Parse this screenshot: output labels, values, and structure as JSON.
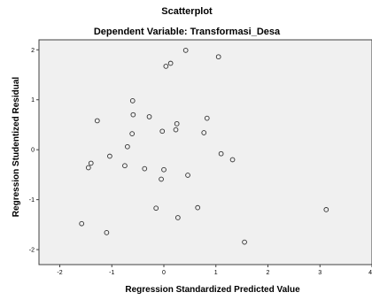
{
  "chart_data": {
    "type": "scatter",
    "title": "Scatterplot",
    "subtitle": "Dependent Variable: Transformasi_Desa",
    "xlabel": "Regression Standardized Predicted Value",
    "ylabel": "Regression Studentized Residual",
    "xlim": [
      -2.4,
      4.0
    ],
    "ylim": [
      -2.3,
      2.2
    ],
    "xticks": [
      "-2",
      "-1",
      "0",
      "1",
      "2",
      "3",
      "4"
    ],
    "yticks": [
      "-2",
      "-1",
      "0",
      "1",
      "2"
    ],
    "grid": false,
    "colors": {
      "plot_bg": "#f0f0f0",
      "marker_edge": "#303030",
      "frame": "#404040"
    },
    "points": [
      {
        "x": -1.58,
        "y": -1.48
      },
      {
        "x": -1.45,
        "y": -0.36
      },
      {
        "x": -1.4,
        "y": -0.27
      },
      {
        "x": -1.28,
        "y": 0.58
      },
      {
        "x": -1.1,
        "y": -1.66
      },
      {
        "x": -1.04,
        "y": -0.13
      },
      {
        "x": -0.75,
        "y": -0.32
      },
      {
        "x": -0.7,
        "y": 0.06
      },
      {
        "x": -0.6,
        "y": 0.98
      },
      {
        "x": -0.59,
        "y": 0.7
      },
      {
        "x": -0.61,
        "y": 0.32
      },
      {
        "x": -0.37,
        "y": -0.38
      },
      {
        "x": -0.28,
        "y": 0.66
      },
      {
        "x": -0.15,
        "y": -1.17
      },
      {
        "x": -0.05,
        "y": -0.59
      },
      {
        "x": -0.03,
        "y": 0.37
      },
      {
        "x": 0.0,
        "y": -0.4
      },
      {
        "x": 0.04,
        "y": 1.67
      },
      {
        "x": 0.13,
        "y": 1.73
      },
      {
        "x": 0.23,
        "y": 0.4
      },
      {
        "x": 0.25,
        "y": 0.52
      },
      {
        "x": 0.27,
        "y": -1.36
      },
      {
        "x": 0.42,
        "y": 1.99
      },
      {
        "x": 0.46,
        "y": -0.51
      },
      {
        "x": 0.65,
        "y": -1.16
      },
      {
        "x": 0.77,
        "y": 0.34
      },
      {
        "x": 0.83,
        "y": 0.63
      },
      {
        "x": 1.05,
        "y": 1.86
      },
      {
        "x": 1.1,
        "y": -0.08
      },
      {
        "x": 1.32,
        "y": -0.2
      },
      {
        "x": 1.55,
        "y": -1.85
      },
      {
        "x": 3.12,
        "y": -1.2
      }
    ]
  }
}
